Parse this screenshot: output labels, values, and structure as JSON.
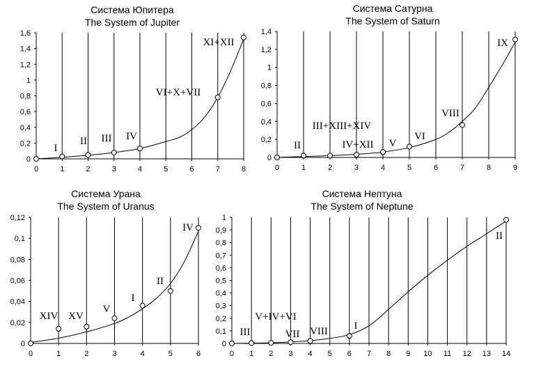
{
  "chart_data": [
    {
      "type": "scatter",
      "title": "Система Юпитера",
      "subtitle": "The System of Jupiter",
      "xlim": [
        0,
        8
      ],
      "ylim": [
        0,
        1.6
      ],
      "xticks": [
        "0",
        "1",
        "2",
        "3",
        "4",
        "5",
        "6",
        "7",
        "8"
      ],
      "yticks": [
        "0",
        "0,2",
        "0,4",
        "0,6",
        "0,8",
        "1",
        "1,2",
        "1,4",
        "1,6"
      ],
      "grid_x": true,
      "points": [
        {
          "x": 0,
          "y": 0,
          "label": ""
        },
        {
          "x": 1,
          "y": 0.03,
          "label": "I"
        },
        {
          "x": 2,
          "y": 0.05,
          "label": "II"
        },
        {
          "x": 3,
          "y": 0.08,
          "label": "III"
        },
        {
          "x": 4,
          "y": 0.13,
          "label": "IV"
        },
        {
          "x": 7,
          "y": 0.78,
          "label": "VI+X+VII"
        },
        {
          "x": 8,
          "y": 1.54,
          "label": "XI+XII"
        }
      ],
      "curve": [
        [
          0,
          0
        ],
        [
          1,
          0.02
        ],
        [
          2,
          0.045
        ],
        [
          3,
          0.08
        ],
        [
          4,
          0.13
        ],
        [
          5,
          0.22
        ],
        [
          5.5,
          0.27
        ],
        [
          6,
          0.37
        ],
        [
          6.5,
          0.53
        ],
        [
          7,
          0.78
        ],
        [
          7.5,
          1.12
        ],
        [
          8,
          1.52
        ]
      ]
    },
    {
      "type": "scatter",
      "title": "Система Сатурна",
      "subtitle": "The System of Saturn",
      "xlim": [
        0,
        9
      ],
      "ylim": [
        0,
        1.4
      ],
      "xticks": [
        "0",
        "1",
        "2",
        "3",
        "4",
        "5",
        "6",
        "7",
        "8",
        "9"
      ],
      "yticks": [
        "0",
        "0,2",
        "0,4",
        "0,6",
        "0,8",
        "1",
        "1,2",
        "1,4"
      ],
      "grid_x": true,
      "points": [
        {
          "x": 0,
          "y": 0,
          "label": ""
        },
        {
          "x": 1,
          "y": 0.02,
          "label": "II"
        },
        {
          "x": 2,
          "y": 0.02,
          "label": ""
        },
        {
          "x": 3,
          "y": 0.03,
          "label": "IV+XII"
        },
        {
          "x": 4,
          "y": 0.06,
          "label": "V"
        },
        {
          "x": 5,
          "y": 0.12,
          "label": "VI"
        },
        {
          "x": 7,
          "y": 0.36,
          "label": "VIII"
        },
        {
          "x": 9,
          "y": 1.31,
          "label": "IX"
        }
      ],
      "extra_labels": [
        "III+XIII+XIV"
      ],
      "curve": [
        [
          0,
          0
        ],
        [
          1,
          0.01
        ],
        [
          2,
          0.02
        ],
        [
          3,
          0.035
        ],
        [
          4,
          0.06
        ],
        [
          5,
          0.11
        ],
        [
          6,
          0.2
        ],
        [
          6.5,
          0.28
        ],
        [
          7,
          0.4
        ],
        [
          7.5,
          0.55
        ],
        [
          8,
          0.78
        ],
        [
          8.5,
          1.02
        ],
        [
          9,
          1.28
        ]
      ]
    },
    {
      "type": "scatter",
      "title": "Система Урана",
      "subtitle": "The System of Uranus",
      "xlim": [
        0,
        6
      ],
      "ylim": [
        0,
        0.12
      ],
      "xticks": [
        "0",
        "1",
        "2",
        "3",
        "4",
        "5",
        "6"
      ],
      "yticks": [
        "0",
        "0,02",
        "0,04",
        "0,06",
        "0,08",
        "0,1",
        "0,12"
      ],
      "grid_x": true,
      "points": [
        {
          "x": 0,
          "y": 0,
          "label": ""
        },
        {
          "x": 1,
          "y": 0.014,
          "label": "XIV"
        },
        {
          "x": 2,
          "y": 0.016,
          "label": "XV"
        },
        {
          "x": 3,
          "y": 0.024,
          "label": "V"
        },
        {
          "x": 4,
          "y": 0.036,
          "label": "I"
        },
        {
          "x": 5,
          "y": 0.05,
          "label": "II"
        },
        {
          "x": 6,
          "y": 0.11,
          "label": "IV"
        }
      ],
      "curve": [
        [
          0,
          0.001
        ],
        [
          1,
          0.005
        ],
        [
          2,
          0.011
        ],
        [
          3,
          0.019
        ],
        [
          3.5,
          0.025
        ],
        [
          4,
          0.033
        ],
        [
          4.5,
          0.043
        ],
        [
          5,
          0.057
        ],
        [
          5.5,
          0.078
        ],
        [
          6,
          0.107
        ]
      ]
    },
    {
      "type": "scatter",
      "title": "Система Нептуна",
      "subtitle": "The System of Neptune",
      "xlim": [
        0,
        14
      ],
      "ylim": [
        0,
        1
      ],
      "xticks": [
        "0",
        "1",
        "2",
        "3",
        "4",
        "5",
        "6",
        "7",
        "8",
        "9",
        "10",
        "11",
        "12",
        "13",
        "14"
      ],
      "yticks": [
        "0",
        "0,1",
        "0,2",
        "0,3",
        "0,4",
        "0,5",
        "0,6",
        "0,7",
        "0,8",
        "0,9",
        "1"
      ],
      "grid_x": true,
      "points": [
        {
          "x": 0,
          "y": 0,
          "label": ""
        },
        {
          "x": 1,
          "y": 0.003,
          "label": "III"
        },
        {
          "x": 2,
          "y": 0.004,
          "label": "V+IV+VI"
        },
        {
          "x": 3,
          "y": 0.01,
          "label": "VII"
        },
        {
          "x": 4,
          "y": 0.02,
          "label": "VIII"
        },
        {
          "x": 6,
          "y": 0.06,
          "label": "I"
        },
        {
          "x": 14,
          "y": 0.98,
          "label": "II"
        }
      ],
      "curve": [
        [
          0,
          0
        ],
        [
          1,
          0.002
        ],
        [
          2,
          0.005
        ],
        [
          3,
          0.012
        ],
        [
          4,
          0.022
        ],
        [
          5,
          0.04
        ],
        [
          6,
          0.07
        ],
        [
          7,
          0.14
        ],
        [
          8,
          0.27
        ],
        [
          9,
          0.41
        ],
        [
          10,
          0.54
        ],
        [
          11,
          0.66
        ],
        [
          12,
          0.77
        ],
        [
          13,
          0.87
        ],
        [
          14,
          0.97
        ]
      ]
    }
  ]
}
